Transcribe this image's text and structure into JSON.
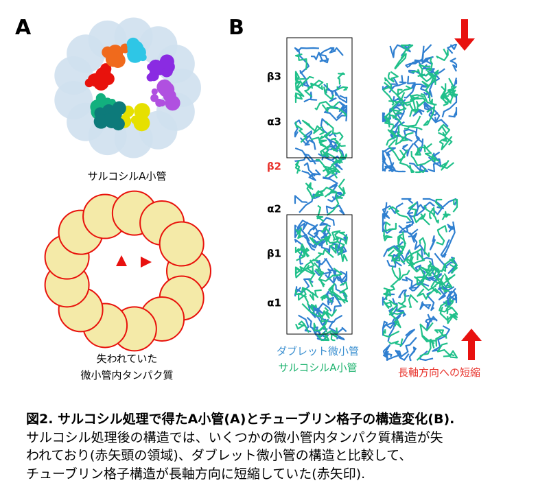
{
  "panel_a": {
    "label": "A",
    "top_caption": "サルコシルA小管",
    "bottom_caption": [
      "失われていた",
      "微小管内タンパク質"
    ]
  },
  "panel_b": {
    "label": "B",
    "domains": [
      "β3",
      "α3",
      "β2",
      "α2",
      "β1",
      "α1"
    ],
    "legend": [
      "ダブレット微小管",
      "サルコシルA小管"
    ],
    "arrow_note": "長軸方向への短縮"
  },
  "figure_caption": {
    "title": "図2. サルコシル処理で得たA小管(A)とチューブリン格子の構造変化(B).",
    "lines": [
      "サルコシル処理後の構造では、いくつかの微小管内タンパク質構造が失",
      "われており(赤矢頭の領域)、ダブレット微小管の構造と比較して、",
      "チューブリン格子構造が長軸方向に短縮していた(赤矢印)."
    ]
  }
}
